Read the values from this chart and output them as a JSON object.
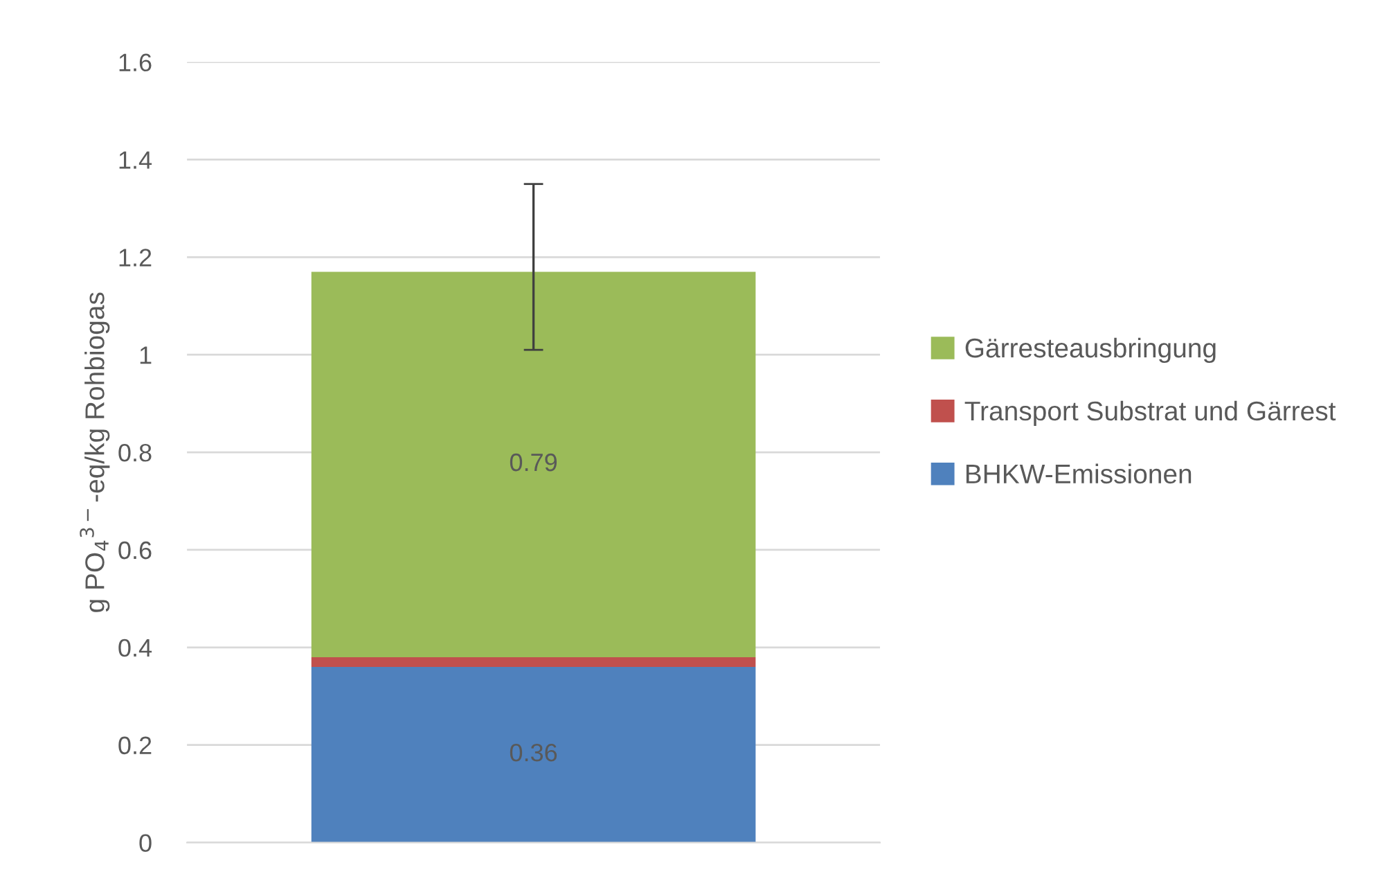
{
  "chart_data": {
    "type": "bar",
    "stacked": true,
    "ylabel": "g PO$_{4}$$^{3−}$-eq/kg Rohbiogas",
    "categories": [
      null
    ],
    "series": [
      {
        "name": "BHKW-Emissionen",
        "color": "#4f81bd",
        "values": [
          0.36
        ],
        "value_labels": [
          "0.36"
        ]
      },
      {
        "name": "Transport Substrat und Gärrest",
        "color": "#c0504d",
        "values": [
          0.02
        ],
        "value_labels": [
          null
        ]
      },
      {
        "name": "Gärresteausbringung",
        "color": "#9bbb59",
        "values": [
          0.79
        ],
        "value_labels": [
          "0.79"
        ],
        "errors": [
          [
            1.01,
            1.35
          ]
        ]
      }
    ],
    "ylim": [
      0,
      1.6
    ],
    "yticks": [
      0,
      0.2,
      0.4,
      0.6,
      0.8,
      1,
      1.2,
      1.4,
      1.6
    ],
    "grid": "y",
    "legend": "right",
    "tick_labels": "y"
  }
}
